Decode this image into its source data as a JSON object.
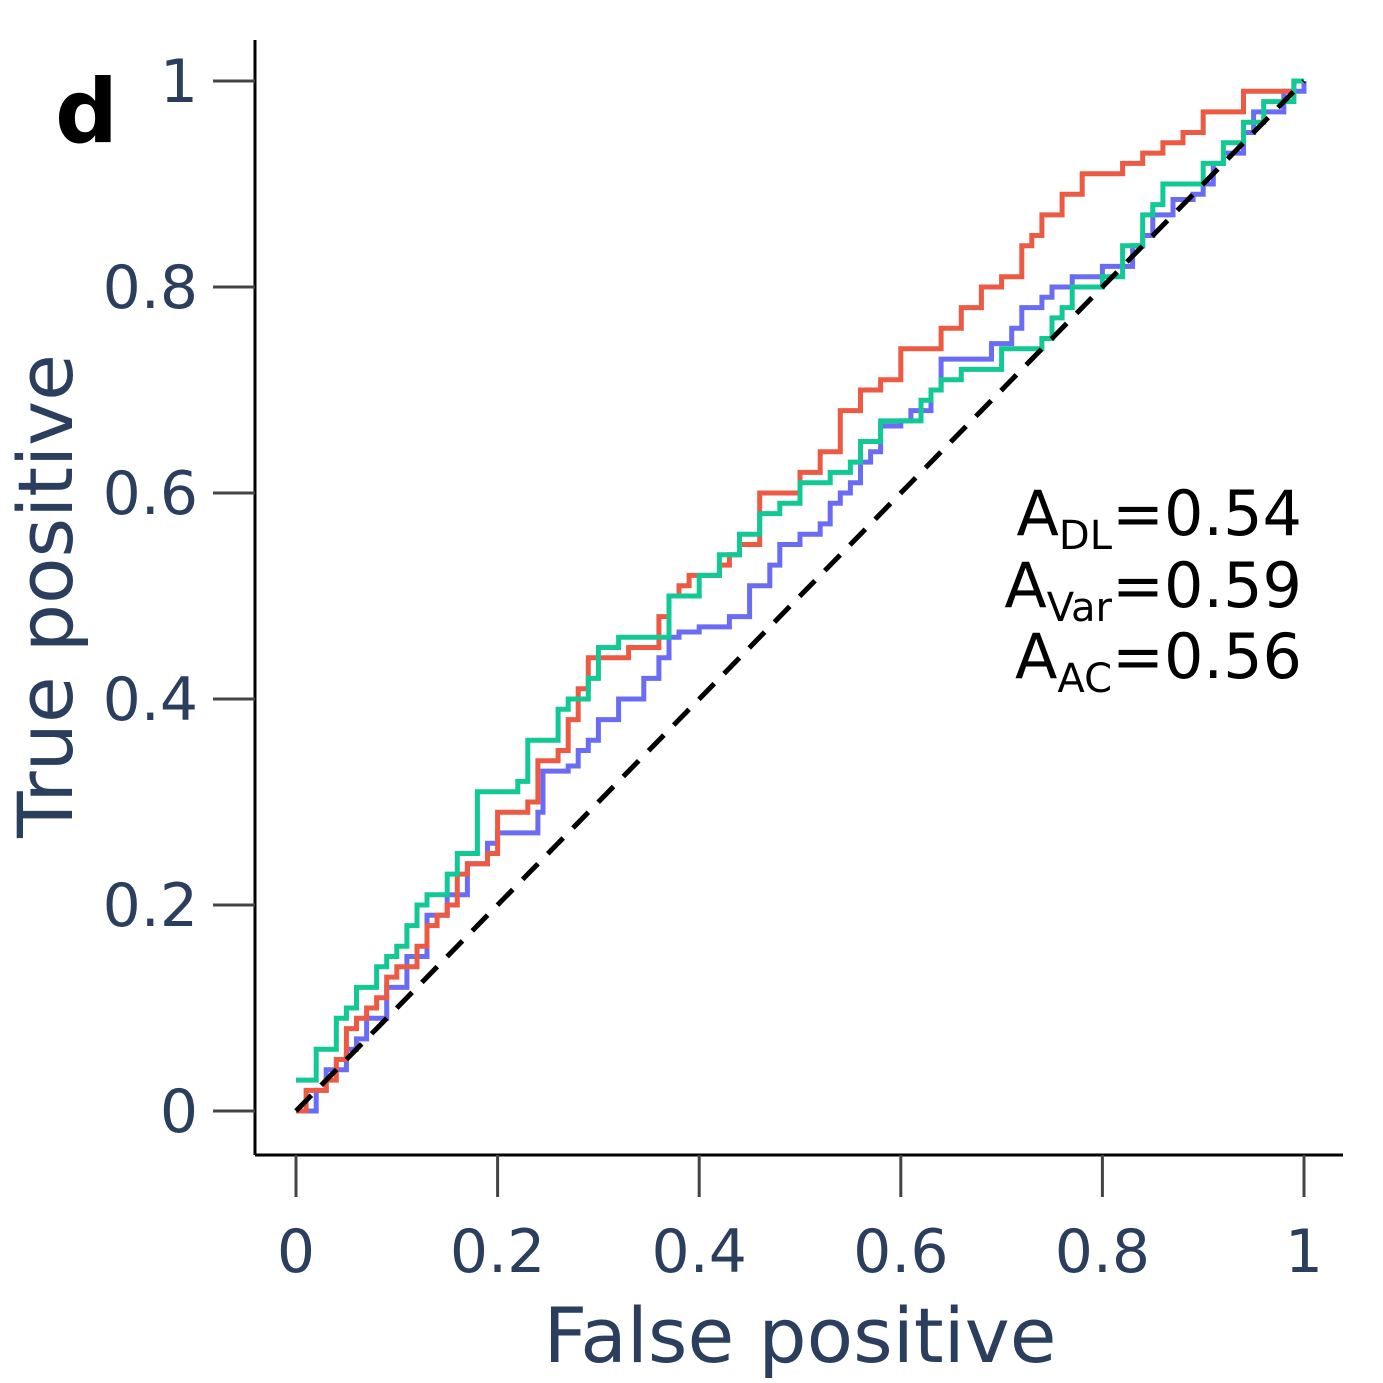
{
  "chart_data": {
    "type": "line",
    "panel_label": "d",
    "xlabel": "False positive",
    "ylabel": "True positive",
    "xlim": [
      0,
      1
    ],
    "ylim": [
      0,
      1
    ],
    "xticks": [
      0,
      0.2,
      0.4,
      0.6,
      0.8,
      1
    ],
    "yticks": [
      0,
      0.2,
      0.4,
      0.6,
      0.8,
      1
    ],
    "xtick_labels": [
      "0",
      "0.2",
      "0.4",
      "0.6",
      "0.8",
      "1"
    ],
    "ytick_labels": [
      "0",
      "0.2",
      "0.4",
      "0.6",
      "0.8",
      "1"
    ],
    "grid": false,
    "annotations": [
      {
        "prefix": "A",
        "sub": "DL",
        "value": "=0.54"
      },
      {
        "prefix": "A",
        "sub": "Var",
        "value": "=0.59"
      },
      {
        "prefix": "A",
        "sub": "AC",
        "value": "=0.56"
      }
    ],
    "series": [
      {
        "color": "#6a6cf6",
        "steps": [
          [
            0,
            0
          ],
          [
            0.02,
            0.02
          ],
          [
            0.03,
            0.04
          ],
          [
            0.05,
            0.06
          ],
          [
            0.06,
            0.07
          ],
          [
            0.07,
            0.09
          ],
          [
            0.09,
            0.12
          ],
          [
            0.11,
            0.15
          ],
          [
            0.13,
            0.19
          ],
          [
            0.15,
            0.21
          ],
          [
            0.17,
            0.24
          ],
          [
            0.19,
            0.26
          ],
          [
            0.2,
            0.27
          ],
          [
            0.24,
            0.29
          ],
          [
            0.245,
            0.33
          ],
          [
            0.27,
            0.335
          ],
          [
            0.28,
            0.35
          ],
          [
            0.29,
            0.36
          ],
          [
            0.3,
            0.38
          ],
          [
            0.32,
            0.4
          ],
          [
            0.345,
            0.42
          ],
          [
            0.36,
            0.44
          ],
          [
            0.37,
            0.46
          ],
          [
            0.38,
            0.465
          ],
          [
            0.4,
            0.47
          ],
          [
            0.43,
            0.48
          ],
          [
            0.45,
            0.51
          ],
          [
            0.47,
            0.53
          ],
          [
            0.48,
            0.55
          ],
          [
            0.5,
            0.56
          ],
          [
            0.52,
            0.57
          ],
          [
            0.53,
            0.59
          ],
          [
            0.54,
            0.6
          ],
          [
            0.55,
            0.61
          ],
          [
            0.56,
            0.63
          ],
          [
            0.57,
            0.64
          ],
          [
            0.58,
            0.665
          ],
          [
            0.6,
            0.67
          ],
          [
            0.61,
            0.68
          ],
          [
            0.63,
            0.7
          ],
          [
            0.64,
            0.73
          ],
          [
            0.69,
            0.745
          ],
          [
            0.71,
            0.76
          ],
          [
            0.72,
            0.78
          ],
          [
            0.74,
            0.79
          ],
          [
            0.75,
            0.8
          ],
          [
            0.77,
            0.81
          ],
          [
            0.8,
            0.82
          ],
          [
            0.83,
            0.84
          ],
          [
            0.84,
            0.85
          ],
          [
            0.85,
            0.87
          ],
          [
            0.87,
            0.885
          ],
          [
            0.89,
            0.89
          ],
          [
            0.9,
            0.9
          ],
          [
            0.91,
            0.92
          ],
          [
            0.92,
            0.93
          ],
          [
            0.94,
            0.95
          ],
          [
            0.95,
            0.97
          ],
          [
            0.98,
            0.99
          ],
          [
            1,
            1
          ]
        ]
      },
      {
        "color": "#ec5a44",
        "steps": [
          [
            0,
            0
          ],
          [
            0.01,
            0.02
          ],
          [
            0.03,
            0.03
          ],
          [
            0.04,
            0.05
          ],
          [
            0.05,
            0.08
          ],
          [
            0.06,
            0.09
          ],
          [
            0.07,
            0.1
          ],
          [
            0.08,
            0.11
          ],
          [
            0.09,
            0.13
          ],
          [
            0.1,
            0.14
          ],
          [
            0.12,
            0.16
          ],
          [
            0.13,
            0.18
          ],
          [
            0.14,
            0.19
          ],
          [
            0.15,
            0.2
          ],
          [
            0.16,
            0.23
          ],
          [
            0.17,
            0.24
          ],
          [
            0.19,
            0.25
          ],
          [
            0.2,
            0.29
          ],
          [
            0.23,
            0.3
          ],
          [
            0.24,
            0.34
          ],
          [
            0.26,
            0.35
          ],
          [
            0.27,
            0.38
          ],
          [
            0.28,
            0.41
          ],
          [
            0.29,
            0.44
          ],
          [
            0.33,
            0.45
          ],
          [
            0.36,
            0.48
          ],
          [
            0.37,
            0.5
          ],
          [
            0.38,
            0.51
          ],
          [
            0.39,
            0.52
          ],
          [
            0.42,
            0.53
          ],
          [
            0.43,
            0.54
          ],
          [
            0.44,
            0.55
          ],
          [
            0.46,
            0.6
          ],
          [
            0.5,
            0.62
          ],
          [
            0.52,
            0.64
          ],
          [
            0.54,
            0.68
          ],
          [
            0.56,
            0.7
          ],
          [
            0.58,
            0.71
          ],
          [
            0.6,
            0.74
          ],
          [
            0.64,
            0.76
          ],
          [
            0.66,
            0.78
          ],
          [
            0.68,
            0.8
          ],
          [
            0.7,
            0.81
          ],
          [
            0.72,
            0.84
          ],
          [
            0.73,
            0.85
          ],
          [
            0.74,
            0.87
          ],
          [
            0.76,
            0.89
          ],
          [
            0.78,
            0.91
          ],
          [
            0.82,
            0.92
          ],
          [
            0.84,
            0.93
          ],
          [
            0.86,
            0.94
          ],
          [
            0.88,
            0.95
          ],
          [
            0.9,
            0.97
          ],
          [
            0.94,
            0.99
          ],
          [
            0.99,
            1
          ],
          [
            1,
            1
          ]
        ]
      },
      {
        "color": "#12c894",
        "steps": [
          [
            0,
            0.03
          ],
          [
            0.02,
            0.06
          ],
          [
            0.04,
            0.09
          ],
          [
            0.05,
            0.1
          ],
          [
            0.06,
            0.12
          ],
          [
            0.08,
            0.14
          ],
          [
            0.09,
            0.15
          ],
          [
            0.1,
            0.16
          ],
          [
            0.11,
            0.18
          ],
          [
            0.12,
            0.2
          ],
          [
            0.13,
            0.21
          ],
          [
            0.15,
            0.23
          ],
          [
            0.16,
            0.25
          ],
          [
            0.18,
            0.31
          ],
          [
            0.22,
            0.32
          ],
          [
            0.23,
            0.36
          ],
          [
            0.26,
            0.39
          ],
          [
            0.27,
            0.4
          ],
          [
            0.29,
            0.42
          ],
          [
            0.3,
            0.45
          ],
          [
            0.32,
            0.46
          ],
          [
            0.37,
            0.5
          ],
          [
            0.4,
            0.52
          ],
          [
            0.42,
            0.54
          ],
          [
            0.44,
            0.56
          ],
          [
            0.46,
            0.58
          ],
          [
            0.48,
            0.59
          ],
          [
            0.5,
            0.61
          ],
          [
            0.53,
            0.62
          ],
          [
            0.55,
            0.63
          ],
          [
            0.56,
            0.65
          ],
          [
            0.58,
            0.67
          ],
          [
            0.62,
            0.69
          ],
          [
            0.63,
            0.7
          ],
          [
            0.64,
            0.71
          ],
          [
            0.66,
            0.72
          ],
          [
            0.7,
            0.74
          ],
          [
            0.74,
            0.75
          ],
          [
            0.75,
            0.77
          ],
          [
            0.76,
            0.78
          ],
          [
            0.77,
            0.8
          ],
          [
            0.8,
            0.81
          ],
          [
            0.82,
            0.84
          ],
          [
            0.84,
            0.87
          ],
          [
            0.85,
            0.88
          ],
          [
            0.86,
            0.9
          ],
          [
            0.9,
            0.92
          ],
          [
            0.92,
            0.94
          ],
          [
            0.94,
            0.96
          ],
          [
            0.96,
            0.98
          ],
          [
            0.99,
            1
          ],
          [
            1,
            1
          ]
        ]
      }
    ],
    "diagonal": {
      "color": "#000000",
      "style": "dashed",
      "from": [
        0,
        0
      ],
      "to": [
        1,
        1
      ]
    }
  }
}
